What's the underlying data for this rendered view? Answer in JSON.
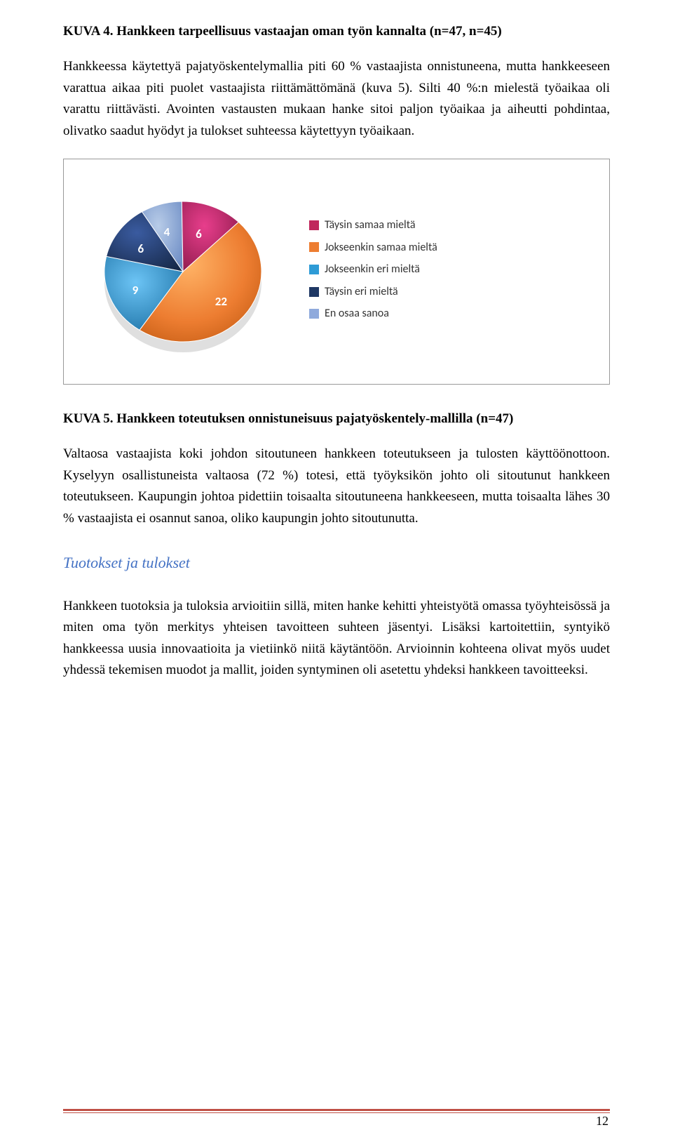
{
  "caption_top_label": "KUVA 4.",
  "caption_top_text": "Hankkeen tarpeellisuus vastaajan oman työn kannalta (n=47, n=45)",
  "para1": "Hankkeessa käytettyä pajatyöskentelymallia piti 60 % vastaajista onnistuneena, mutta hankkeeseen varattua aikaa piti puolet vastaajista riittämättömänä (kuva 5). Silti 40 %:n mielestä työaikaa oli varattu riittävästi. Avointen vastausten mukaan hanke sitoi paljon työaikaa ja aiheutti pohdintaa, olivatko saadut hyödyt ja tulokset suhteessa käytettyyn työaikaan.",
  "chart": {
    "type": "pie",
    "slices": [
      {
        "label": "Täysin samaa mieltä",
        "value": 6,
        "color": "#c0275c"
      },
      {
        "label": "Jokseenkin samaa mieltä",
        "value": 22,
        "color": "#ed7d31"
      },
      {
        "label": "Jokseenkin eri mieltä",
        "value": 9,
        "color": "#2e9bd6"
      },
      {
        "label": "Täysin eri mieltä",
        "value": 6,
        "color": "#1f3864"
      },
      {
        "label": "En osaa sanoa",
        "value": 4,
        "color": "#8faadc"
      }
    ],
    "background": "#ffffff",
    "border": "#999999",
    "label_color": "#ffffff",
    "label_fontsize": 17,
    "legend_fontsize": 16,
    "legend_font": "Calibri"
  },
  "caption_chart_label": "KUVA 5.",
  "caption_chart_text": "Hankkeen toteutuksen onnistuneisuus pajatyöskentely-mallilla (n=47)",
  "para2": "Valtaosa vastaajista koki johdon sitoutuneen hankkeen toteutukseen ja tulosten käyttöönottoon. Kyselyyn osallistuneista valtaosa (72 %) totesi, että työyksikön johto oli sitoutunut hankkeen toteutukseen. Kaupungin johtoa pidettiin toisaalta sitoutuneena hankkeeseen, mutta toisaalta lähes 30 % vastaajista ei osannut sanoa, oliko kaupungin johto sitoutunutta.",
  "section_heading": "Tuotokset ja tulokset",
  "para3": "Hankkeen tuotoksia ja tuloksia arvioitiin sillä, miten hanke kehitti yhteistyötä omassa työyhteisössä ja miten oma työn merkitys yhteisen tavoitteen suhteen jäsentyi. Lisäksi kartoitettiin, syntyikö hankkeessa uusia innovaatioita ja vietiinkö niitä käytäntöön. Arvioinnin kohteena olivat myös uudet yhdessä tekemisen muodot ja mallit, joiden syntyminen oli asetettu yhdeksi hankkeen tavoitteeksi.",
  "page_number": "12",
  "footer_color": "#c05046"
}
